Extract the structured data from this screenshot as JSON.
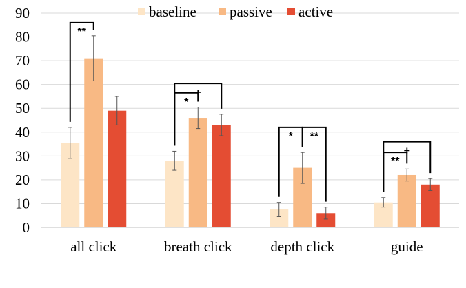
{
  "chart_data": {
    "type": "bar",
    "categories": [
      "all click",
      "breath click",
      "depth click",
      "guide"
    ],
    "series": [
      {
        "name": "baseline",
        "color": "#fde5c6",
        "values": [
          35.5,
          28,
          7.5,
          10.5
        ],
        "errors": [
          6.5,
          4,
          3,
          2
        ]
      },
      {
        "name": "passive",
        "color": "#f8b984",
        "values": [
          71,
          46,
          25,
          22
        ],
        "errors": [
          9.5,
          4.5,
          6.5,
          2.5
        ]
      },
      {
        "name": "active",
        "color": "#e44d33",
        "values": [
          49,
          43,
          6,
          18
        ],
        "errors": [
          6,
          4.5,
          2.5,
          2.5
        ]
      }
    ],
    "ylim": [
      0,
      90
    ],
    "yticks": [
      0,
      10,
      20,
      30,
      40,
      50,
      60,
      70,
      80,
      90
    ],
    "legend_position": "top-center",
    "grid": true,
    "annotations": [
      {
        "category": 0,
        "from": "baseline",
        "to": "passive",
        "label": "**",
        "y": 86
      },
      {
        "category": 1,
        "from": "baseline",
        "to": "passive",
        "label": "*",
        "y": 56.5
      },
      {
        "category": 1,
        "from": "baseline",
        "to": "active",
        "label": "+",
        "y": 60.5
      },
      {
        "category": 2,
        "from": "baseline",
        "to": "passive",
        "label": "*",
        "y": 42
      },
      {
        "category": 2,
        "from": "passive",
        "to": "active",
        "label": "**",
        "y": 42
      },
      {
        "category": 3,
        "from": "baseline",
        "to": "passive",
        "label": "**",
        "y": 31.5
      },
      {
        "category": 3,
        "from": "baseline",
        "to": "active",
        "label": "+",
        "y": 36
      }
    ]
  }
}
